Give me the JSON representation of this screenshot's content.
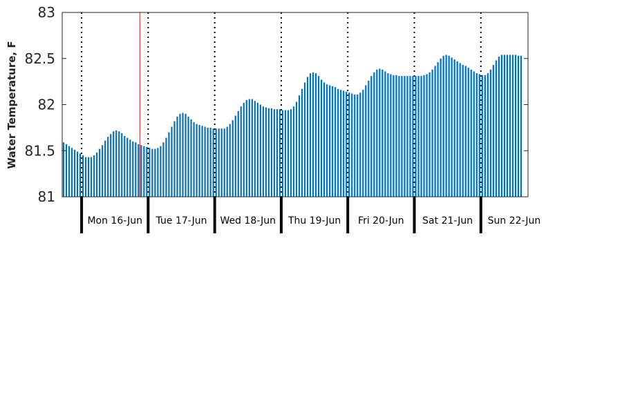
{
  "chart_data": {
    "type": "bar",
    "title": "",
    "xlabel": "",
    "ylabel": "Water Temperature, F",
    "ylim": [
      81,
      83
    ],
    "yticks": [
      81,
      81.5,
      82,
      82.5,
      83
    ],
    "ytick_labels": [
      "81",
      "81.5",
      "82",
      "82.5",
      "83"
    ],
    "x_unit": "hours",
    "xlim": [
      0,
      168
    ],
    "day_labels": [
      "Mon 16-Jun",
      "Tue 17-Jun",
      "Wed 18-Jun",
      "Thu 19-Jun",
      "Fri 20-Jun",
      "Sat 21-Jun",
      "Sun 22-Jun"
    ],
    "day_boundaries_x": [
      7,
      31,
      55,
      79,
      103,
      127,
      151
    ],
    "marker_line_x": 28,
    "grid": false,
    "bar_color": "#0072bd",
    "marker_color": "#d62728",
    "values": [
      81.59,
      81.57,
      81.55,
      81.53,
      81.51,
      81.49,
      81.47,
      81.45,
      81.43,
      81.43,
      81.43,
      81.45,
      81.48,
      81.52,
      81.56,
      81.61,
      81.65,
      81.68,
      81.71,
      81.72,
      81.71,
      81.69,
      81.66,
      81.64,
      81.62,
      81.6,
      81.59,
      81.57,
      81.56,
      81.55,
      81.54,
      81.53,
      81.52,
      81.52,
      81.53,
      81.55,
      81.59,
      81.64,
      81.7,
      81.76,
      81.82,
      81.87,
      81.9,
      81.91,
      81.9,
      81.87,
      81.84,
      81.81,
      81.79,
      81.78,
      81.77,
      81.76,
      81.75,
      81.75,
      81.74,
      81.74,
      81.74,
      81.74,
      81.74,
      81.76,
      81.79,
      81.83,
      81.88,
      81.93,
      81.98,
      82.02,
      82.05,
      82.06,
      82.06,
      82.04,
      82.02,
      82.0,
      81.98,
      81.97,
      81.96,
      81.96,
      81.95,
      81.95,
      81.95,
      81.94,
      81.94,
      81.94,
      81.95,
      81.98,
      82.03,
      82.1,
      82.17,
      82.24,
      82.3,
      82.34,
      82.35,
      82.34,
      82.31,
      82.27,
      82.24,
      82.22,
      82.21,
      82.2,
      82.19,
      82.17,
      82.16,
      82.15,
      82.14,
      82.13,
      82.12,
      82.11,
      82.11,
      82.13,
      82.16,
      82.21,
      82.26,
      82.31,
      82.35,
      82.38,
      82.39,
      82.38,
      82.36,
      82.34,
      82.33,
      82.32,
      82.32,
      82.31,
      82.31,
      82.31,
      82.31,
      82.31,
      82.31,
      82.31,
      82.31,
      82.31,
      82.32,
      82.33,
      82.35,
      82.38,
      82.42,
      82.46,
      82.5,
      82.53,
      82.54,
      82.53,
      82.51,
      82.49,
      82.47,
      82.45,
      82.43,
      82.42,
      82.4,
      82.38,
      82.36,
      82.34,
      82.33,
      82.32,
      82.32,
      82.34,
      82.38,
      82.43,
      82.48,
      82.52,
      82.54,
      82.54,
      82.54,
      82.54,
      82.54,
      82.54,
      82.53,
      82.53
    ]
  }
}
